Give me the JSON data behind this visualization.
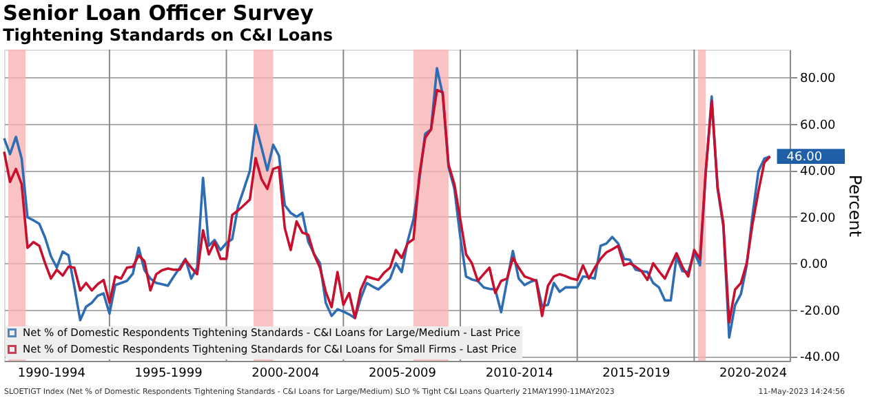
{
  "chart_data": {
    "type": "line",
    "title": "Senior Loan Officer Survey",
    "subtitle": "Tightening Standards on C&I Loans",
    "ylabel": "Percent",
    "xlim": [
      "1990-07",
      "2024-02"
    ],
    "ylim": [
      -42,
      92
    ],
    "xticks": [
      {
        "value": "1992-07",
        "label": "1990-1994"
      },
      {
        "value": "1995-01",
        "label": null
      },
      {
        "value": "1997-07",
        "label": "1995-1999"
      },
      {
        "value": "2000-01",
        "label": null
      },
      {
        "value": "2002-07",
        "label": "2000-2004"
      },
      {
        "value": "2005-01",
        "label": null
      },
      {
        "value": "2007-07",
        "label": "2005-2009"
      },
      {
        "value": "2010-01",
        "label": null
      },
      {
        "value": "2012-07",
        "label": "2010-2014"
      },
      {
        "value": "2015-01",
        "label": null
      },
      {
        "value": "2017-07",
        "label": "2015-2019"
      },
      {
        "value": "2020-01",
        "label": null
      },
      {
        "value": "2022-07",
        "label": "2020-2024"
      }
    ],
    "yticks": [
      {
        "value": -40,
        "label": "-40.00"
      },
      {
        "value": -20,
        "label": "-20.00"
      },
      {
        "value": 0,
        "label": "0.00"
      },
      {
        "value": 20,
        "label": "20.00"
      },
      {
        "value": 40,
        "label": "40.00"
      },
      {
        "value": 60,
        "label": "60.00"
      },
      {
        "value": 80,
        "label": "80.00"
      }
    ],
    "grid": true,
    "legend": "bottom left",
    "line_style": "solid",
    "bands": [
      {
        "axis": "x",
        "from": "1990-09",
        "to": "1991-06",
        "color": "#f8b4b4"
      },
      {
        "axis": "x",
        "from": "2001-03",
        "to": "2002-01",
        "color": "#f8b4b4"
      },
      {
        "axis": "x",
        "from": "2008-01",
        "to": "2009-07",
        "color": "#f8b4b4"
      },
      {
        "axis": "x",
        "from": "2020-03",
        "to": "2020-07",
        "color": "#f8b4b4"
      }
    ],
    "x": [
      "1990-07",
      "1990-10",
      "1991-01",
      "1991-04",
      "1991-07",
      "1991-10",
      "1992-01",
      "1992-04",
      "1992-07",
      "1992-10",
      "1993-01",
      "1993-04",
      "1993-07",
      "1993-10",
      "1994-01",
      "1994-04",
      "1994-07",
      "1994-10",
      "1995-01",
      "1995-04",
      "1995-07",
      "1995-10",
      "1996-01",
      "1996-04",
      "1996-07",
      "1996-10",
      "1997-01",
      "1997-04",
      "1997-07",
      "1997-10",
      "1998-01",
      "1998-04",
      "1998-07",
      "1998-10",
      "1999-01",
      "1999-04",
      "1999-07",
      "1999-10",
      "2000-01",
      "2000-04",
      "2000-07",
      "2000-10",
      "2001-01",
      "2001-04",
      "2001-07",
      "2001-10",
      "2002-01",
      "2002-04",
      "2002-07",
      "2002-10",
      "2003-01",
      "2003-04",
      "2003-07",
      "2003-10",
      "2004-01",
      "2004-04",
      "2004-07",
      "2004-10",
      "2005-01",
      "2005-04",
      "2005-07",
      "2005-10",
      "2006-01",
      "2006-04",
      "2006-07",
      "2006-10",
      "2007-01",
      "2007-04",
      "2007-07",
      "2007-10",
      "2008-01",
      "2008-04",
      "2008-07",
      "2008-10",
      "2009-01",
      "2009-04",
      "2009-07",
      "2009-10",
      "2010-01",
      "2010-04",
      "2010-07",
      "2010-10",
      "2011-01",
      "2011-04",
      "2011-07",
      "2011-10",
      "2012-01",
      "2012-04",
      "2012-07",
      "2012-10",
      "2013-01",
      "2013-04",
      "2013-07",
      "2013-10",
      "2014-01",
      "2014-04",
      "2014-07",
      "2014-10",
      "2015-01",
      "2015-04",
      "2015-07",
      "2015-10",
      "2016-01",
      "2016-04",
      "2016-07",
      "2016-10",
      "2017-01",
      "2017-04",
      "2017-07",
      "2017-10",
      "2018-01",
      "2018-04",
      "2018-07",
      "2018-10",
      "2019-01",
      "2019-04",
      "2019-07",
      "2019-10",
      "2020-01",
      "2020-04",
      "2020-07",
      "2020-10",
      "2021-01",
      "2021-04",
      "2021-07",
      "2021-10",
      "2022-01",
      "2022-04",
      "2022-07",
      "2022-10",
      "2023-01",
      "2023-04"
    ],
    "series": [
      {
        "name": "Net % of Domestic Respondents Tightening Standards - C&I Loans for Large/Medium - Last Price",
        "color": "#2e6db4",
        "values": [
          53.8,
          47,
          54.4,
          45,
          19.8,
          18.5,
          17,
          11,
          3,
          -1.9,
          5,
          3.4,
          -10,
          -24.5,
          -18.7,
          -17,
          -14,
          -13,
          -21.7,
          -9.4,
          -8.5,
          -7.6,
          -4.5,
          6.7,
          -3,
          -6.6,
          -8.5,
          -9,
          -9.7,
          -5.7,
          -2,
          1.9,
          -6.6,
          -1.9,
          36.8,
          7.5,
          10,
          5.7,
          8.7,
          10.4,
          24.5,
          32,
          39.7,
          59.5,
          50,
          40,
          51,
          46.3,
          25,
          21.7,
          20,
          21.7,
          9.4,
          4,
          0,
          -17,
          -22.7,
          -19.8,
          -20.8,
          -22,
          -23.6,
          -15,
          -8.5,
          -10,
          -11.3,
          -9,
          -6.6,
          0,
          -3.8,
          9.4,
          18.9,
          35.9,
          55.7,
          57.6,
          84,
          72.7,
          41.5,
          32,
          11.3,
          -5.7,
          -7,
          -7.6,
          -10.4,
          -11,
          -11.3,
          -21.1,
          -7.6,
          5.3,
          -6.6,
          -9.4,
          -8,
          -7.2,
          -18.5,
          -17.9,
          -8.5,
          -12.3,
          -10.4,
          -10.4,
          -10.4,
          -5.7,
          -6,
          -6.6,
          7.5,
          8.5,
          11.3,
          8.5,
          1.9,
          1.5,
          -2.8,
          -3.4,
          -3.8,
          -8.5,
          -10.4,
          -16,
          -16,
          2.8,
          -3.4,
          -3.8,
          4.7,
          -0.9,
          39.7,
          71.8,
          32,
          16,
          -32,
          -18,
          -13.2,
          -0.9,
          20.8,
          39.7,
          45,
          46
        ]
      },
      {
        "name": "Net % of Domestic Respondents Tightening Standards for C&I Loans for Small Firms - Last Price",
        "color": "#c8102e",
        "values": [
          48,
          35,
          40.6,
          34,
          6.6,
          9.1,
          7.5,
          0,
          -6.6,
          -2.8,
          -5.3,
          -1.5,
          -1.9,
          -11.7,
          -8.5,
          -11.7,
          -9,
          -7.2,
          -17,
          -5.7,
          -6.6,
          -1.9,
          -1.5,
          3.4,
          0.9,
          -11.7,
          -4.7,
          -3,
          -2.3,
          -2.8,
          -2.8,
          1.5,
          -1.9,
          -4.7,
          14.2,
          3.8,
          9.1,
          1.9,
          1.9,
          20.8,
          22.7,
          25,
          27.4,
          45.3,
          36.3,
          32,
          40.6,
          41.5,
          15.1,
          5.7,
          18,
          13.2,
          12.3,
          3.8,
          -1.9,
          -12.3,
          -18.9,
          -3.8,
          -17.9,
          -12.8,
          -23.6,
          -11.3,
          -5.7,
          -6.5,
          -7.2,
          -4,
          -1.9,
          5.7,
          2.3,
          8.5,
          10.4,
          37.8,
          54,
          57.6,
          74.6,
          73.6,
          42.5,
          34,
          18.9,
          3.8,
          0,
          -7.6,
          -4.7,
          -1.9,
          -12.8,
          -7.6,
          -6.6,
          2.3,
          -1.9,
          -5.7,
          -6.6,
          -7.6,
          -22.7,
          -9.7,
          -5.7,
          -4.7,
          -5.5,
          -6.6,
          -7.2,
          -0.9,
          -6.6,
          -2,
          1.9,
          4.7,
          6,
          7.5,
          -0.9,
          0,
          -1.5,
          -3.4,
          -7.2,
          0,
          -3.5,
          -6.6,
          -1,
          4.3,
          -1.5,
          -5.7,
          5.7,
          1.9,
          39.7,
          69.9,
          32.9,
          17,
          -25.5,
          -11.3,
          -8.5,
          0,
          17,
          31,
          43.4,
          46
        ]
      }
    ],
    "annotations": [
      {
        "text": "46.00",
        "x": "2023-04",
        "y": 46
      },
      "SLOETIGT Index (Net % of Domestic Respondents Tightening Standards - C&I Loans for Large/Medium) SLO % Tight C&I Loans  Quarterly 21MAY1990-11MAY2023",
      "11-May-2023 14:24:56"
    ]
  }
}
